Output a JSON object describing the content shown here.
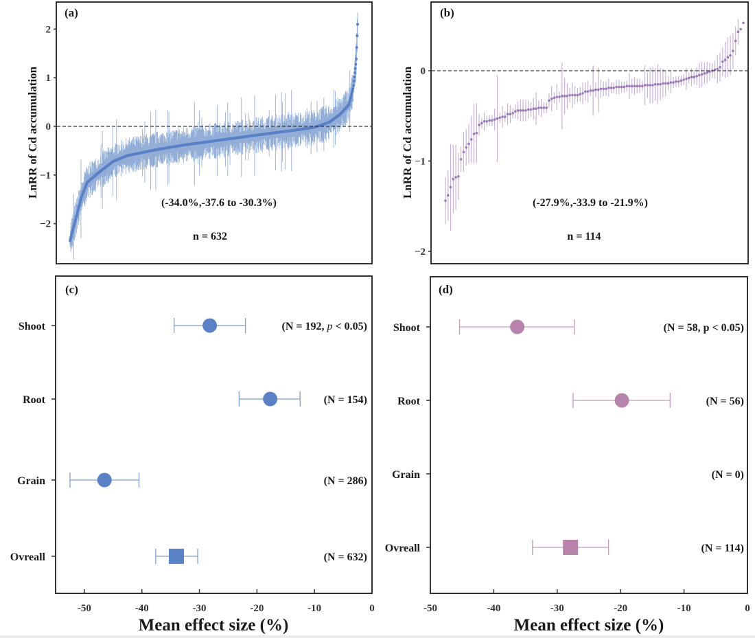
{
  "figure": {
    "colors": {
      "blue": "#5a80c6",
      "blue_err": "#7f9fcf",
      "purple": "#9b78b8",
      "purple_err": "#c7b2d6",
      "pink": "#b783aa",
      "pink_err": "#c79bbb"
    }
  },
  "chart_data": [
    {
      "id": "a",
      "type": "scatter",
      "panel_label": "(a)",
      "title": "",
      "ylabel": "LnRR of Cd accumulation",
      "xlabel": "",
      "ylim": [
        -2.8,
        2.5
      ],
      "yticks": [
        2,
        1,
        0,
        -1,
        -2
      ],
      "ytick_labels": [
        "2",
        "1",
        "0",
        "−1",
        "−2"
      ],
      "reference_line": 0,
      "n_points": 632,
      "sorted_curve_anchors": {
        "rank_fraction": [
          0.0,
          0.02,
          0.04,
          0.06,
          0.1,
          0.15,
          0.2,
          0.3,
          0.4,
          0.5,
          0.6,
          0.7,
          0.78,
          0.85,
          0.9,
          0.94,
          0.97,
          0.985,
          0.995,
          1.0
        ],
        "lnrr": [
          -2.35,
          -1.9,
          -1.45,
          -1.15,
          -0.95,
          -0.72,
          -0.6,
          -0.48,
          -0.38,
          -0.3,
          -0.22,
          -0.14,
          -0.08,
          -0.02,
          0.08,
          0.25,
          0.45,
          0.8,
          1.35,
          2.1
        ]
      },
      "typical_ci_halfwidth": 0.3,
      "annotation": "(-34.0%,-37.6 to -30.3%)",
      "n_label": "n = 632"
    },
    {
      "id": "b",
      "type": "scatter",
      "panel_label": "(b)",
      "title": "",
      "ylabel": "LnRR of Cd accumulation",
      "xlabel": "",
      "ylim": [
        -2.15,
        0.78
      ],
      "yticks": [
        0,
        -1,
        -2
      ],
      "ytick_labels": [
        "0",
        "−1",
        "−2"
      ],
      "reference_line": 0,
      "n_points": 114,
      "lnrr": [
        -1.44,
        -1.38,
        -1.29,
        -1.2,
        -1.18,
        -1.17,
        -0.98,
        -0.9,
        -0.85,
        -0.81,
        -0.76,
        -0.7,
        -0.69,
        -0.6,
        -0.58,
        -0.56,
        -0.56,
        -0.55,
        -0.55,
        -0.54,
        -0.53,
        -0.52,
        -0.51,
        -0.51,
        -0.48,
        -0.48,
        -0.47,
        -0.45,
        -0.44,
        -0.44,
        -0.44,
        -0.44,
        -0.43,
        -0.43,
        -0.42,
        -0.42,
        -0.41,
        -0.41,
        -0.41,
        -0.41,
        -0.33,
        -0.31,
        -0.3,
        -0.29,
        -0.29,
        -0.28,
        -0.28,
        -0.28,
        -0.27,
        -0.27,
        -0.27,
        -0.27,
        -0.26,
        -0.25,
        -0.23,
        -0.23,
        -0.22,
        -0.22,
        -0.21,
        -0.21,
        -0.2,
        -0.2,
        -0.2,
        -0.19,
        -0.19,
        -0.19,
        -0.18,
        -0.18,
        -0.18,
        -0.18,
        -0.17,
        -0.17,
        -0.17,
        -0.17,
        -0.17,
        -0.17,
        -0.17,
        -0.16,
        -0.16,
        -0.16,
        -0.16,
        -0.15,
        -0.15,
        -0.15,
        -0.14,
        -0.14,
        -0.14,
        -0.13,
        -0.13,
        -0.12,
        -0.12,
        -0.11,
        -0.1,
        -0.09,
        -0.08,
        -0.07,
        -0.07,
        -0.06,
        -0.05,
        -0.04,
        -0.03,
        -0.02,
        -0.01,
        0.0,
        0.01,
        0.02,
        0.04,
        0.1,
        0.12,
        0.15,
        0.17,
        0.22,
        0.33,
        0.43,
        0.46,
        0.53
      ],
      "ci_halfwidth": [
        0.26,
        0.28,
        0.48,
        0.38,
        0.36,
        0.26,
        0.14,
        0.22,
        0.2,
        0.22,
        0.26,
        0.33,
        0.33,
        0.12,
        0.06,
        0.1,
        0.06,
        0.06,
        0.06,
        0.12,
        0.48,
        0.06,
        0.12,
        0.06,
        0.12,
        0.1,
        0.06,
        0.08,
        0.1,
        0.12,
        0.12,
        0.12,
        0.1,
        0.08,
        0.12,
        0.18,
        0.08,
        0.1,
        0.06,
        0.06,
        0.08,
        0.14,
        0.06,
        0.14,
        0.06,
        0.37,
        0.2,
        0.14,
        0.08,
        0.14,
        0.1,
        0.08,
        0.08,
        0.12,
        0.1,
        0.12,
        0.06,
        0.28,
        0.08,
        0.25,
        0.1,
        0.08,
        0.08,
        0.1,
        0.06,
        0.06,
        0.08,
        0.08,
        0.06,
        0.06,
        0.06,
        0.14,
        0.08,
        0.1,
        0.08,
        0.08,
        0.06,
        0.22,
        0.14,
        0.2,
        0.2,
        0.18,
        0.22,
        0.18,
        0.16,
        0.14,
        0.08,
        0.12,
        0.06,
        0.06,
        0.06,
        0.06,
        0.06,
        0.12,
        0.06,
        0.1,
        0.08,
        0.1,
        0.14,
        0.14,
        0.12,
        0.12,
        0.1,
        0.08,
        0.1,
        0.16,
        0.16,
        0.16,
        0.2,
        0.22,
        0.22,
        0.2,
        0.16,
        0.14
      ],
      "annotation": "(-27.9%,-33.9 to -21.9%)",
      "n_label": "n = 114"
    },
    {
      "id": "c",
      "type": "forest",
      "panel_label": "(c)",
      "xlabel": "Mean effect size (%)",
      "xlim": [
        -55,
        0
      ],
      "xticks": [
        -50,
        -40,
        -30,
        -20,
        -10,
        0
      ],
      "xtick_labels": [
        "-50",
        "-40",
        "-30",
        "-20",
        "-10",
        "0"
      ],
      "categories": [
        "Shoot",
        "Root",
        "Grain",
        "Ovreall"
      ],
      "mean": [
        -28.2,
        -17.7,
        -46.5,
        -34.0
      ],
      "ci_low": [
        -34.4,
        -23.1,
        -52.5,
        -37.6
      ],
      "ci_high": [
        -22.0,
        -12.5,
        -40.5,
        -30.3
      ],
      "marker": [
        "circle",
        "circle",
        "circle",
        "square"
      ],
      "n_labels": [
        "(N = 192,  p < 0.05)",
        "(N = 154)",
        "(N = 286)",
        "(N = 632)"
      ],
      "n_label_parts": [
        {
          "pre": "(N = 192,  ",
          "italic": "p",
          "post": " < 0.05)"
        },
        {
          "pre": "(N = 154)",
          "italic": "",
          "post": ""
        },
        {
          "pre": "(N = 286)",
          "italic": "",
          "post": ""
        },
        {
          "pre": "(N = 632)",
          "italic": "",
          "post": ""
        }
      ]
    },
    {
      "id": "d",
      "type": "forest",
      "panel_label": "(d)",
      "xlabel": "Mean effect size (%)",
      "xlim": [
        -50,
        0
      ],
      "xticks": [
        -50,
        -40,
        -30,
        -20,
        -10,
        0
      ],
      "xtick_labels": [
        "-50",
        "-40",
        "-30",
        "-20",
        "-10",
        "0"
      ],
      "categories": [
        "Shoot",
        "Root",
        "Grain",
        "Ovreall"
      ],
      "mean": [
        -36.3,
        -19.8,
        null,
        -27.9
      ],
      "ci_low": [
        -45.4,
        -27.5,
        null,
        -33.9
      ],
      "ci_high": [
        -27.3,
        -12.2,
        null,
        -21.9
      ],
      "marker": [
        "circle",
        "circle",
        "none",
        "square"
      ],
      "n_labels": [
        "(N = 58,  p < 0.05)",
        "(N = 56)",
        "(N = 0)",
        "(N = 114)"
      ],
      "n_label_parts": [
        {
          "pre": "(N = 58,  p < 0.05)",
          "italic": "",
          "post": ""
        },
        {
          "pre": "(N = 56)",
          "italic": "",
          "post": ""
        },
        {
          "pre": "(N = 0)",
          "italic": "",
          "post": ""
        },
        {
          "pre": "(N = 114)",
          "italic": "",
          "post": ""
        }
      ]
    }
  ]
}
